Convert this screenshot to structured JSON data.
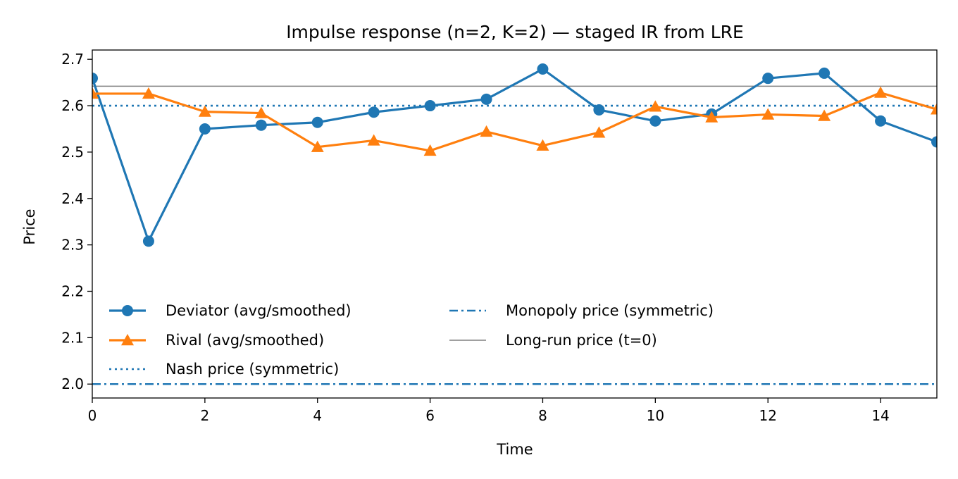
{
  "chart_data": {
    "type": "line",
    "title": "Impulse response (n=2, K=2) — staged IR from LRE",
    "xlabel": "Time",
    "ylabel": "Price",
    "xlim": [
      0,
      15
    ],
    "ylim": [
      1.97,
      2.72
    ],
    "x_ticks": [
      0,
      2,
      4,
      6,
      8,
      10,
      12,
      14
    ],
    "y_ticks": [
      2.0,
      2.1,
      2.2,
      2.3,
      2.4,
      2.5,
      2.6,
      2.7
    ],
    "grid": false,
    "legend_position": "lower-left",
    "x": [
      0,
      1,
      2,
      3,
      4,
      5,
      6,
      7,
      8,
      9,
      10,
      11,
      12,
      13,
      14,
      15
    ],
    "series": [
      {
        "name": "Deviator (avg/smoothed)",
        "color": "#1f77b4",
        "marker": "circle",
        "style": "solid",
        "values": [
          2.659,
          2.308,
          2.55,
          2.558,
          2.564,
          2.586,
          2.6,
          2.614,
          2.679,
          2.591,
          2.567,
          2.582,
          2.659,
          2.67,
          2.567,
          2.522
        ]
      },
      {
        "name": "Rival (avg/smoothed)",
        "color": "#ff7f0e",
        "marker": "triangle",
        "style": "solid",
        "values": [
          2.626,
          2.626,
          2.587,
          2.584,
          2.511,
          2.525,
          2.503,
          2.544,
          2.514,
          2.542,
          2.598,
          2.575,
          2.581,
          2.578,
          2.628,
          2.592
        ]
      }
    ],
    "reference_lines": [
      {
        "name": "Nash price (symmetric)",
        "value": 2.6,
        "color": "#1f77b4",
        "style": "dotted"
      },
      {
        "name": "Monopoly price (symmetric)",
        "value": 2.0,
        "color": "#1f77b4",
        "style": "dashdot"
      },
      {
        "name": "Long-run price (t=0)",
        "value": 2.642,
        "color": "#808080",
        "style": "thin"
      }
    ]
  }
}
